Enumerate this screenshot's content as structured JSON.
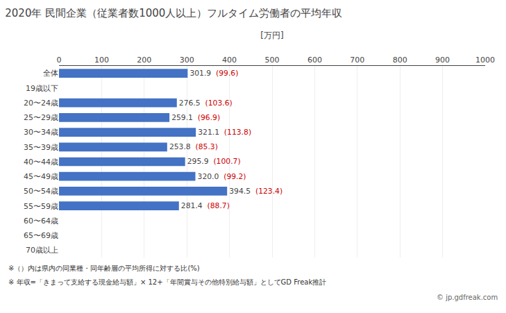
{
  "chart_data": {
    "type": "bar",
    "orientation": "horizontal",
    "title": "2020年 民間企業（従業者数1000人以上）フルタイム労働者の平均年収",
    "xlabel": "[万円]",
    "categories": [
      "全体",
      "19歳以下",
      "20〜24歳",
      "25〜29歳",
      "30〜34歳",
      "35〜39歳",
      "40〜44歳",
      "45〜49歳",
      "50〜54歳",
      "55〜59歳",
      "60〜64歳",
      "65〜69歳",
      "70歳以上"
    ],
    "values": [
      301.9,
      null,
      276.5,
      259.1,
      321.1,
      253.8,
      295.9,
      320.0,
      394.5,
      281.4,
      null,
      null,
      null
    ],
    "value_labels": [
      "301.9",
      null,
      "276.5",
      "259.1",
      "321.1",
      "253.8",
      "295.9",
      "320.0",
      "394.5",
      "281.4",
      null,
      null,
      null
    ],
    "data_labels": true,
    "ratio_labels": {
      "color": "#CC0000",
      "labels": [
        "(99.6)",
        null,
        "(103.6)",
        "(96.9)",
        "(113.8)",
        "(85.3)",
        "(100.7)",
        "(99.2)",
        "(123.4)",
        "(88.7)",
        null,
        null,
        null
      ]
    },
    "color": "#4472C4",
    "xlim": [
      0,
      1000
    ],
    "xticks": [
      0,
      100,
      200,
      300,
      400,
      500,
      600,
      700,
      800,
      900,
      1000
    ],
    "grid": true,
    "annotations": [
      "※（）内は県内の同業種・同年齢層の平均所得に対する比(%)",
      "※ 年収=「きまって支給する現金給与額」× 12+「年間賞与その他特別給与額」としてGD Freak推計",
      "© jp.gdfreak.com"
    ]
  }
}
